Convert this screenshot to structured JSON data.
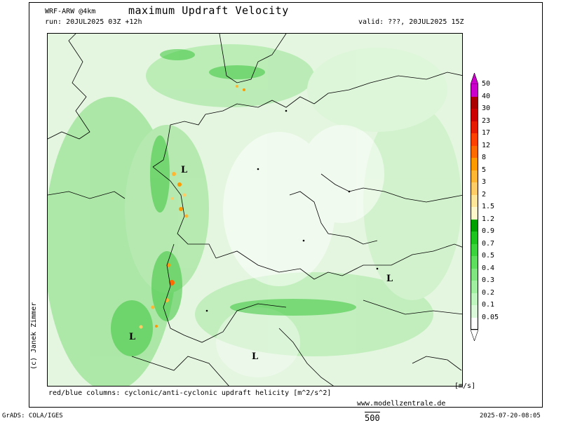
{
  "header": {
    "model": "WRF-ARW @4km",
    "title": "maximum Updraft Velocity",
    "run": "run: 20JUL2025 03Z +12h",
    "valid": "valid: ???, 20JUL2025 15Z"
  },
  "colorbar": {
    "unit": "[m/s]",
    "levels": [
      {
        "label": "50",
        "color": "#cc00cc"
      },
      {
        "label": "40",
        "color": "#aa0000"
      },
      {
        "label": "30",
        "color": "#cc0000"
      },
      {
        "label": "23",
        "color": "#e61a00"
      },
      {
        "label": "17",
        "color": "#ff4000"
      },
      {
        "label": "12",
        "color": "#ff6a00"
      },
      {
        "label": "8",
        "color": "#ff9900"
      },
      {
        "label": "5",
        "color": "#ffb733"
      },
      {
        "label": "3",
        "color": "#ffcc66"
      },
      {
        "label": "2",
        "color": "#ffe699"
      },
      {
        "label": "1.5",
        "color": "#fff7cc"
      },
      {
        "label": "1.2",
        "color": "#00a000"
      },
      {
        "label": "0.9",
        "color": "#1ec41e"
      },
      {
        "label": "0.7",
        "color": "#3cd43c"
      },
      {
        "label": "0.5",
        "color": "#5ee05e"
      },
      {
        "label": "0.4",
        "color": "#80e680"
      },
      {
        "label": "0.3",
        "color": "#a0eea0"
      },
      {
        "label": "0.2",
        "color": "#bff5bf"
      },
      {
        "label": "0.1",
        "color": "#d9f9d9"
      },
      {
        "label": "0.05",
        "color": "#ffffff"
      }
    ]
  },
  "footer": {
    "helicity": "red/blue columns: cyclonic/anti-cyclonic updraft helicity [m^2/s^2]",
    "website": "www.modellzentrale.de",
    "grads": "GrADS: COLA/IGES",
    "timestamp": "2025-07-20-08:05",
    "contour": "500"
  },
  "credit": "(c) Janek Zimmer",
  "pressure_marks": [
    "L",
    "L",
    "L",
    "L"
  ]
}
